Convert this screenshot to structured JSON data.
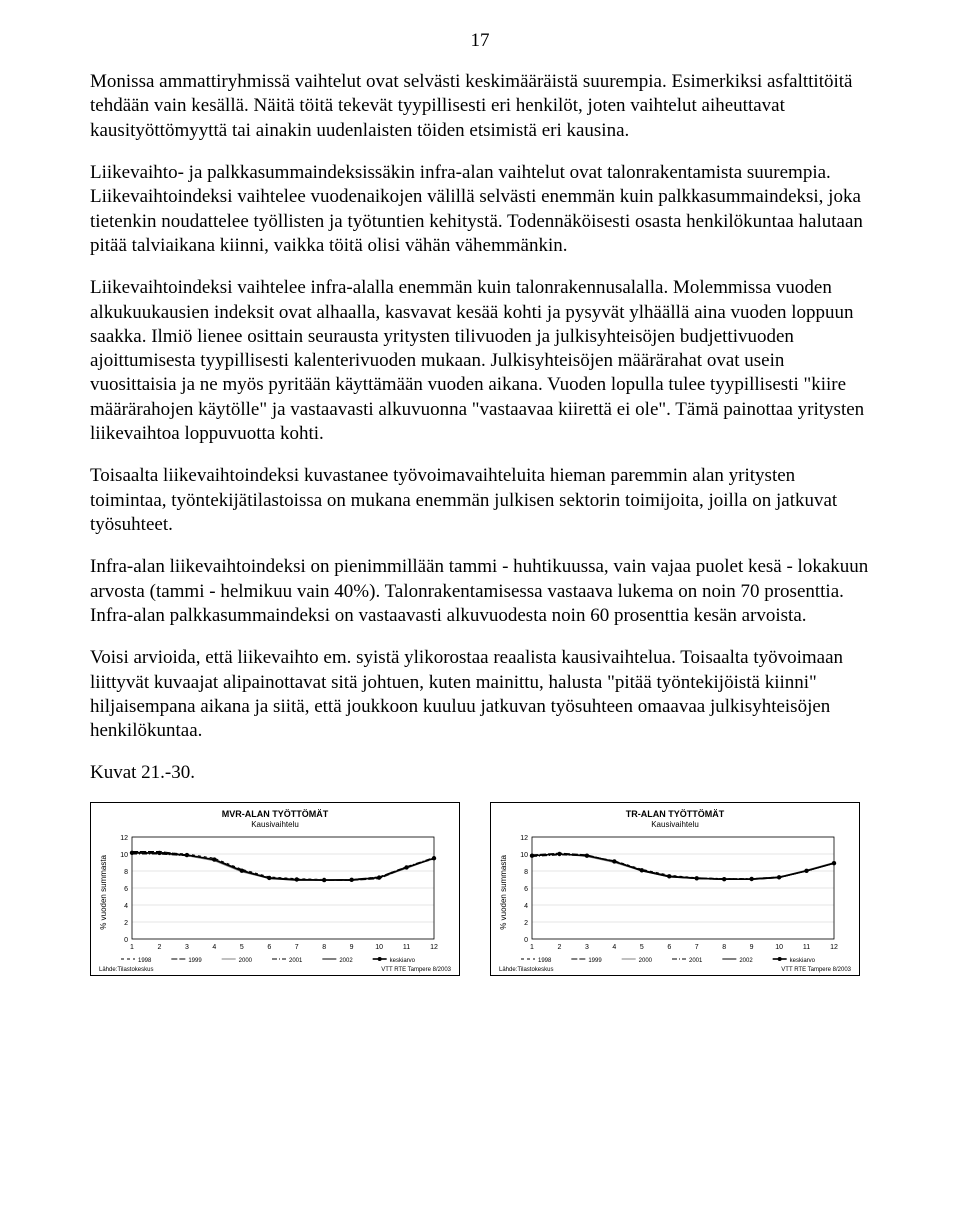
{
  "page_number": "17",
  "paragraphs": {
    "p1": "Monissa ammattiryhmissä vaihtelut ovat selvästi keskimääräistä suurempia. Esimerkiksi asfalttitöitä tehdään vain kesällä. Näitä töitä tekevät tyypillisesti eri henkilöt, joten vaihtelut aiheuttavat kausityöttömyyttä tai ainakin uudenlaisten töiden etsimistä eri kausina.",
    "p2": "Liikevaihto- ja  palkkasummaindeksissäkin infra-alan vaihtelut ovat talonrakentamista suurempia. Liikevaihtoindeksi vaihtelee vuodenaikojen välillä selvästi enemmän kuin palkkasummaindeksi, joka tietenkin noudattelee työllisten ja työtuntien kehitystä. Todennäköisesti osasta henkilökuntaa halutaan pitää talviaikana kiinni, vaikka töitä olisi vähän vähemmänkin.",
    "p3": "Liikevaihtoindeksi vaihtelee infra-alalla enemmän kuin talonrakennusalalla. Molemmissa vuoden alkukuukausien indeksit ovat alhaalla, kasvavat kesää kohti ja pysyvät ylhäällä aina vuoden loppuun saakka. Ilmiö lienee osittain seurausta yritysten tilivuoden ja julkisyhteisöjen budjettivuoden ajoittumisesta tyypillisesti kalenterivuoden mukaan. Julkisyhteisöjen määrärahat ovat usein vuosittaisia ja ne myös pyritään käyttämään vuoden aikana. Vuoden lopulla tulee tyypillisesti \"kiire määrärahojen käytölle\" ja vastaavasti alkuvuonna \"vastaavaa kiirettä ei ole\". Tämä painottaa yritysten liikevaihtoa loppuvuotta kohti.",
    "p4": "Toisaalta liikevaihtoindeksi kuvastanee työvoimavaihteluita hieman paremmin alan yritysten toimintaa, työntekijätilastoissa on mukana enemmän julkisen sektorin toimijoita, joilla on jatkuvat työsuhteet.",
    "p5": "Infra-alan liikevaihtoindeksi on pienimmillään tammi - huhtikuussa, vain vajaa puolet kesä - lokakuun arvosta (tammi - helmikuu vain 40%). Talonrakentamisessa vastaava lukema on  noin 70 prosenttia. Infra-alan palkkasummaindeksi on vastaavasti alkuvuodesta noin 60 prosenttia kesän arvoista.",
    "p6": "Voisi arvioida, että liikevaihto em. syistä ylikorostaa reaalista kausivaihtelua. Toisaalta työvoimaan liittyvät kuvaajat alipainottavat sitä johtuen, kuten mainittu, halusta \"pitää työntekijöistä kiinni\" hiljaisempana aikana ja siitä, että joukkoon kuuluu jatkuvan työsuhteen omaavaa julkisyhteisöjen henkilökuntaa."
  },
  "figure_caption": "Kuvat 21.-30.",
  "charts": {
    "left": {
      "title": "MVR-ALAN TYÖTTÖMÄT",
      "subtitle": "Kausivaihtelu",
      "ylabel": "% vuoden summasta",
      "ylim": [
        0,
        12
      ],
      "ytick_step": 2,
      "x_categories": [
        "1",
        "2",
        "3",
        "4",
        "5",
        "6",
        "7",
        "8",
        "9",
        "10",
        "11",
        "12"
      ],
      "series": [
        {
          "name": "1998",
          "color": "#000000",
          "dash": "3,3",
          "width": 1,
          "marker": "none",
          "values": [
            10.2,
            10.2,
            10.0,
            9.5,
            8.2,
            7.3,
            7.1,
            7.0,
            7.0,
            7.3,
            8.5,
            9.4
          ]
        },
        {
          "name": "1999",
          "color": "#000000",
          "dash": "6,2",
          "width": 1,
          "marker": "none",
          "values": [
            10.3,
            10.3,
            9.9,
            9.3,
            8.0,
            7.2,
            7.0,
            6.9,
            6.9,
            7.1,
            8.4,
            9.5
          ]
        },
        {
          "name": "2000",
          "color": "#808080",
          "dash": "0",
          "width": 1,
          "marker": "none",
          "values": [
            10.1,
            10.0,
            9.8,
            9.2,
            7.9,
            7.1,
            7.0,
            7.0,
            7.0,
            7.2,
            8.3,
            9.5
          ]
        },
        {
          "name": "2001",
          "color": "#000000",
          "dash": "5,2,1,2",
          "width": 1,
          "marker": "none",
          "values": [
            10.0,
            10.0,
            9.8,
            9.4,
            8.1,
            7.2,
            7.0,
            6.9,
            7.0,
            7.3,
            8.5,
            9.6
          ]
        },
        {
          "name": "2002",
          "color": "#000000",
          "dash": "0",
          "width": 1,
          "marker": "none",
          "values": [
            10.1,
            10.1,
            9.9,
            9.3,
            8.0,
            7.1,
            6.9,
            6.9,
            6.9,
            7.2,
            8.4,
            9.5
          ]
        },
        {
          "name": "keskiarvo",
          "color": "#000000",
          "dash": "0",
          "width": 1.6,
          "marker": "circle",
          "values": [
            10.14,
            10.12,
            9.88,
            9.34,
            8.04,
            7.18,
            7.0,
            6.94,
            6.96,
            7.22,
            8.42,
            9.5
          ]
        }
      ],
      "source_left": "Lähde:Tilastokeskus",
      "source_right": "VTT RTE Tampere 8/2003"
    },
    "right": {
      "title": "TR-ALAN TYÖTTÖMÄT",
      "subtitle": "Kausivaihtelu",
      "ylabel": "% vuoden summasta",
      "ylim": [
        0,
        12
      ],
      "ytick_step": 2,
      "x_categories": [
        "1",
        "2",
        "3",
        "4",
        "5",
        "6",
        "7",
        "8",
        "9",
        "10",
        "11",
        "12"
      ],
      "series": [
        {
          "name": "1998",
          "color": "#000000",
          "dash": "3,3",
          "width": 1,
          "marker": "none",
          "values": [
            9.8,
            10.0,
            9.8,
            9.2,
            8.2,
            7.5,
            7.2,
            7.1,
            7.1,
            7.3,
            8.0,
            8.9
          ]
        },
        {
          "name": "1999",
          "color": "#000000",
          "dash": "6,2",
          "width": 1,
          "marker": "none",
          "values": [
            9.9,
            10.1,
            9.9,
            9.1,
            8.1,
            7.4,
            7.1,
            7.0,
            7.0,
            7.2,
            8.0,
            8.9
          ]
        },
        {
          "name": "2000",
          "color": "#808080",
          "dash": "0",
          "width": 1,
          "marker": "none",
          "values": [
            9.8,
            10.0,
            9.7,
            9.0,
            8.0,
            7.3,
            7.1,
            7.0,
            7.1,
            7.3,
            8.1,
            9.0
          ]
        },
        {
          "name": "2001",
          "color": "#000000",
          "dash": "5,2,1,2",
          "width": 1,
          "marker": "none",
          "values": [
            9.7,
            9.9,
            9.8,
            9.2,
            8.1,
            7.4,
            7.2,
            7.1,
            7.1,
            7.3,
            8.0,
            8.9
          ]
        },
        {
          "name": "2002",
          "color": "#000000",
          "dash": "0",
          "width": 1,
          "marker": "none",
          "values": [
            9.8,
            10.0,
            9.8,
            9.1,
            8.0,
            7.3,
            7.1,
            7.0,
            7.0,
            7.2,
            8.0,
            8.9
          ]
        },
        {
          "name": "keskiarvo",
          "color": "#000000",
          "dash": "0",
          "width": 1.6,
          "marker": "circle",
          "values": [
            9.8,
            10.0,
            9.8,
            9.12,
            8.08,
            7.38,
            7.14,
            7.04,
            7.06,
            7.26,
            8.02,
            8.92
          ]
        }
      ],
      "source_left": "Lähde:Tilastokeskus",
      "source_right": "VTT RTE Tampere 8/2003"
    }
  },
  "legend_labels": [
    "1998",
    "1999",
    "2000",
    "2001",
    "2002",
    "keskiarvo"
  ]
}
